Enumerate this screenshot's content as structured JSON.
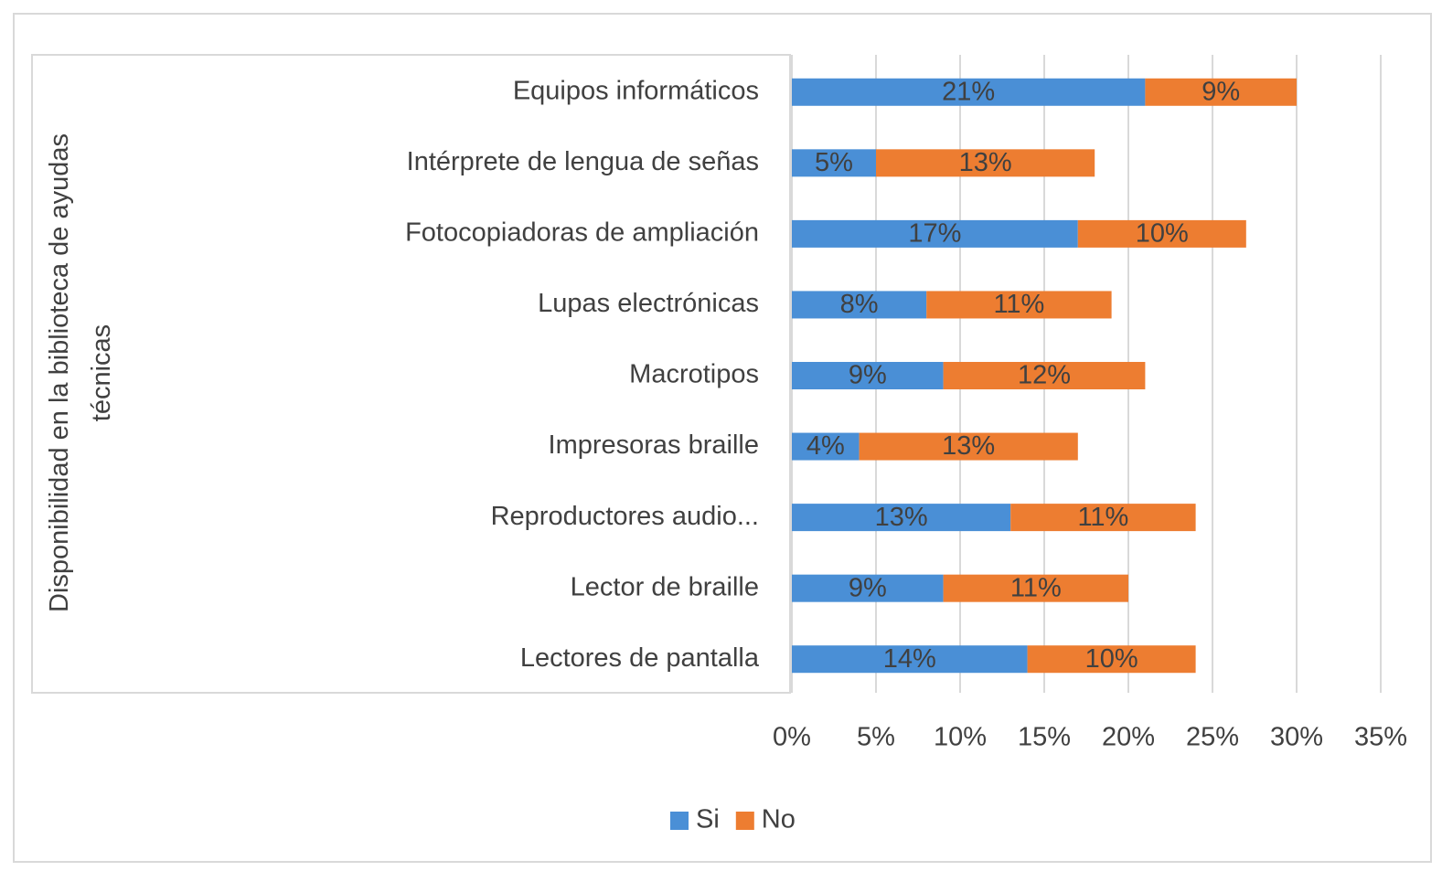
{
  "chart_data": {
    "type": "stacked_barh",
    "y_label": "Disponibilidad en la biblioteca de ayudas técnicas",
    "categories": [
      "Equipos informáticos",
      "Intérprete de lengua de señas",
      "Fotocopiadoras de ampliación",
      "Lupas electrónicas",
      "Macrotipos",
      "Impresoras braille",
      "Reproductores audio...",
      "Lector de braille",
      "Lectores de pantalla"
    ],
    "series": [
      {
        "name": "Si",
        "color": "#4a8fd6",
        "values": [
          21,
          5,
          17,
          8,
          9,
          4,
          13,
          9,
          14
        ],
        "value_labels": [
          "21%",
          "5%",
          "17%",
          "8%",
          "9%",
          "4%",
          "13%",
          "9%",
          "14%"
        ]
      },
      {
        "name": "No",
        "color": "#ed7d31",
        "values": [
          9,
          13,
          10,
          11,
          12,
          13,
          11,
          11,
          10
        ],
        "value_labels": [
          "9%",
          "13%",
          "10%",
          "11%",
          "12%",
          "13%",
          "11%",
          "11%",
          "10%"
        ]
      }
    ],
    "xlim": [
      0,
      35
    ],
    "xticks": [
      {
        "value": 0,
        "label": "0%"
      },
      {
        "value": 5,
        "label": "5%"
      },
      {
        "value": 10,
        "label": "10%"
      },
      {
        "value": 15,
        "label": "15%"
      },
      {
        "value": 20,
        "label": "20%"
      },
      {
        "value": 25,
        "label": "25%"
      },
      {
        "value": 30,
        "label": "30%"
      },
      {
        "value": 35,
        "label": "35%"
      }
    ],
    "grid": true,
    "legend": "bottom"
  }
}
